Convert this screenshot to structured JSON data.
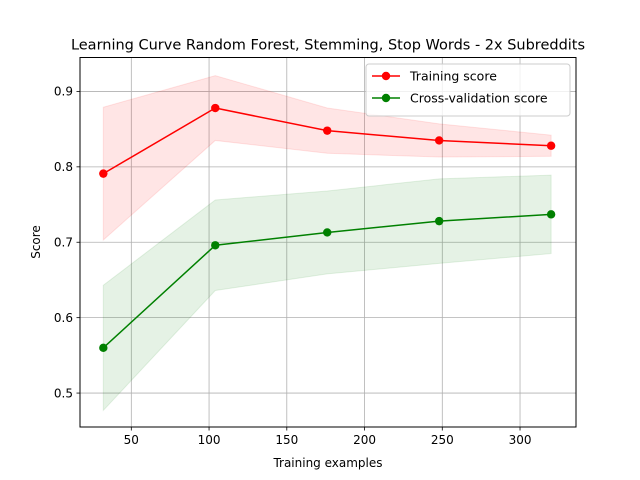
{
  "chart_data": {
    "type": "line",
    "title": "Learning Curve Random Forest, Stemming, Stop Words - 2x Subreddits",
    "xlabel": "Training examples",
    "ylabel": "Score",
    "xlim": [
      17,
      336
    ],
    "ylim": [
      0.455,
      0.945
    ],
    "xticks": [
      50,
      100,
      150,
      200,
      250,
      300
    ],
    "yticks": [
      0.5,
      0.6,
      0.7,
      0.8,
      0.9
    ],
    "grid": true,
    "legend_position": "top-right",
    "x": [
      32,
      104,
      176,
      248,
      320
    ],
    "series": [
      {
        "name": "Training score",
        "color": "#ff0000",
        "band_color": "#ff0000",
        "marker": "circle",
        "values": [
          0.791,
          0.878,
          0.848,
          0.835,
          0.828
        ],
        "band_upper": [
          0.879,
          0.921,
          0.878,
          0.857,
          0.842
        ],
        "band_lower": [
          0.703,
          0.835,
          0.818,
          0.813,
          0.814
        ]
      },
      {
        "name": "Cross-validation score",
        "color": "#008000",
        "band_color": "#008000",
        "marker": "circle",
        "values": [
          0.56,
          0.696,
          0.713,
          0.728,
          0.737
        ],
        "band_upper": [
          0.643,
          0.756,
          0.768,
          0.784,
          0.789
        ],
        "band_lower": [
          0.477,
          0.636,
          0.658,
          0.672,
          0.685
        ]
      }
    ]
  }
}
